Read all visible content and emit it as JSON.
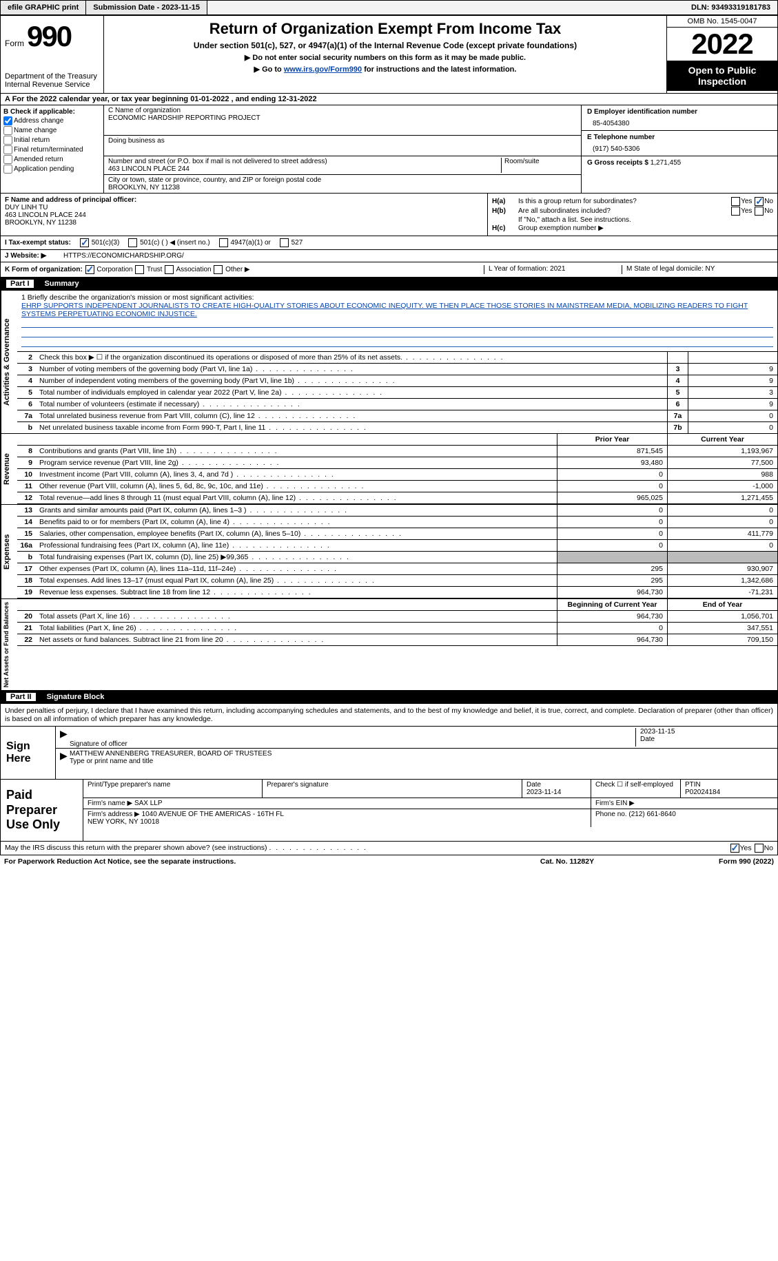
{
  "topbar": {
    "efile": "efile GRAPHIC print",
    "subdate_lbl": "Submission Date - ",
    "subdate": "2023-11-15",
    "dln_lbl": "DLN: ",
    "dln": "93493319181783"
  },
  "header": {
    "form_word": "Form",
    "form_num": "990",
    "dept": "Department of the Treasury\nInternal Revenue Service",
    "title": "Return of Organization Exempt From Income Tax",
    "subtitle": "Under section 501(c), 527, or 4947(a)(1) of the Internal Revenue Code (except private foundations)",
    "arrow1": "▶ Do not enter social security numbers on this form as it may be made public.",
    "arrow2_pre": "▶ Go to ",
    "arrow2_link": "www.irs.gov/Form990",
    "arrow2_post": " for instructions and the latest information.",
    "omb": "OMB No. 1545-0047",
    "year": "2022",
    "open_pub": "Open to Public Inspection"
  },
  "row_a": "A  For the 2022 calendar year, or tax year beginning 01-01-2022    , and ending 12-31-2022",
  "col_b": {
    "hdr": "B Check if applicable:",
    "opts": [
      "Address change",
      "Name change",
      "Initial return",
      "Final return/terminated",
      "Amended return",
      "Application pending"
    ],
    "checked": [
      true,
      false,
      false,
      false,
      false,
      false
    ]
  },
  "col_c": {
    "name_lbl": "C Name of organization",
    "name": "ECONOMIC HARDSHIP REPORTING PROJECT",
    "dba_lbl": "Doing business as",
    "dba": "",
    "street_lbl": "Number and street (or P.O. box if mail is not delivered to street address)",
    "street": "463 LINCOLN PLACE 244",
    "room_lbl": "Room/suite",
    "city_lbl": "City or town, state or province, country, and ZIP or foreign postal code",
    "city": "BROOKLYN, NY  11238"
  },
  "col_de": {
    "d_lbl": "D Employer identification number",
    "d_val": "85-4054380",
    "e_lbl": "E Telephone number",
    "e_val": "(917) 540-5306",
    "g_lbl": "G Gross receipts $ ",
    "g_val": "1,271,455"
  },
  "col_f": {
    "lbl": "F  Name and address of principal officer:",
    "name": "DUY LINH TU",
    "addr1": "463 LINCOLN PLACE 244",
    "addr2": "BROOKLYN, NY  11238"
  },
  "col_h": {
    "ha": "Is this a group return for subordinates?",
    "hb": "Are all subordinates included?",
    "hb2": "If \"No,\" attach a list. See instructions.",
    "hc": "Group exemption number ▶"
  },
  "row_i": {
    "lbl": "I   Tax-exempt status:",
    "o1": "501(c)(3)",
    "o2": "501(c) (  ) ◀ (insert no.)",
    "o3": "4947(a)(1) or",
    "o4": "527"
  },
  "row_j": {
    "lbl": "J   Website: ▶",
    "val": "HTTPS://ECONOMICHARDSHIP.ORG/"
  },
  "row_k": {
    "left": "K Form of organization:",
    "opts": [
      "Corporation",
      "Trust",
      "Association",
      "Other ▶"
    ],
    "l": "L Year of formation: 2021",
    "m": "M State of legal domicile: NY"
  },
  "part1_hdr": {
    "num": "Part I",
    "title": "Summary"
  },
  "mission": {
    "lbl": "1   Briefly describe the organization's mission or most significant activities:",
    "txt": "EHRP SUPPORTS INDEPENDENT JOURNALISTS TO CREATE HIGH-QUALITY STORIES ABOUT ECONOMIC INEQUITY. WE THEN PLACE THOSE STORIES IN MAINSTREAM MEDIA, MOBILIZING READERS TO FIGHT SYSTEMS PERPETUATING ECONOMIC INJUSTICE."
  },
  "gov_rows": [
    {
      "n": "2",
      "t": "Check this box ▶ ☐  if the organization discontinued its operations or disposed of more than 25% of its net assets.",
      "box": "",
      "v": ""
    },
    {
      "n": "3",
      "t": "Number of voting members of the governing body (Part VI, line 1a)",
      "box": "3",
      "v": "9"
    },
    {
      "n": "4",
      "t": "Number of independent voting members of the governing body (Part VI, line 1b)",
      "box": "4",
      "v": "9"
    },
    {
      "n": "5",
      "t": "Total number of individuals employed in calendar year 2022 (Part V, line 2a)",
      "box": "5",
      "v": "3"
    },
    {
      "n": "6",
      "t": "Total number of volunteers (estimate if necessary)",
      "box": "6",
      "v": "9"
    },
    {
      "n": "7a",
      "t": "Total unrelated business revenue from Part VIII, column (C), line 12",
      "box": "7a",
      "v": "0"
    },
    {
      "n": "b",
      "t": "Net unrelated business taxable income from Form 990-T, Part I, line 11",
      "box": "7b",
      "v": "0"
    }
  ],
  "rev_hdr": {
    "c1": "Prior Year",
    "c2": "Current Year"
  },
  "rev_rows": [
    {
      "n": "8",
      "t": "Contributions and grants (Part VIII, line 1h)",
      "c1": "871,545",
      "c2": "1,193,967"
    },
    {
      "n": "9",
      "t": "Program service revenue (Part VIII, line 2g)",
      "c1": "93,480",
      "c2": "77,500"
    },
    {
      "n": "10",
      "t": "Investment income (Part VIII, column (A), lines 3, 4, and 7d )",
      "c1": "0",
      "c2": "988"
    },
    {
      "n": "11",
      "t": "Other revenue (Part VIII, column (A), lines 5, 6d, 8c, 9c, 10c, and 11e)",
      "c1": "0",
      "c2": "-1,000"
    },
    {
      "n": "12",
      "t": "Total revenue—add lines 8 through 11 (must equal Part VIII, column (A), line 12)",
      "c1": "965,025",
      "c2": "1,271,455"
    }
  ],
  "exp_rows": [
    {
      "n": "13",
      "t": "Grants and similar amounts paid (Part IX, column (A), lines 1–3 )",
      "c1": "0",
      "c2": "0"
    },
    {
      "n": "14",
      "t": "Benefits paid to or for members (Part IX, column (A), line 4)",
      "c1": "0",
      "c2": "0"
    },
    {
      "n": "15",
      "t": "Salaries, other compensation, employee benefits (Part IX, column (A), lines 5–10)",
      "c1": "0",
      "c2": "411,779"
    },
    {
      "n": "16a",
      "t": "Professional fundraising fees (Part IX, column (A), line 11e)",
      "c1": "0",
      "c2": "0"
    },
    {
      "n": "b",
      "t": "Total fundraising expenses (Part IX, column (D), line 25) ▶99,365",
      "c1": "grey",
      "c2": "grey"
    },
    {
      "n": "17",
      "t": "Other expenses (Part IX, column (A), lines 11a–11d, 11f–24e)",
      "c1": "295",
      "c2": "930,907"
    },
    {
      "n": "18",
      "t": "Total expenses. Add lines 13–17 (must equal Part IX, column (A), line 25)",
      "c1": "295",
      "c2": "1,342,686"
    },
    {
      "n": "19",
      "t": "Revenue less expenses. Subtract line 18 from line 12",
      "c1": "964,730",
      "c2": "-71,231"
    }
  ],
  "net_hdr": {
    "c1": "Beginning of Current Year",
    "c2": "End of Year"
  },
  "net_rows": [
    {
      "n": "20",
      "t": "Total assets (Part X, line 16)",
      "c1": "964,730",
      "c2": "1,056,701"
    },
    {
      "n": "21",
      "t": "Total liabilities (Part X, line 26)",
      "c1": "0",
      "c2": "347,551"
    },
    {
      "n": "22",
      "t": "Net assets or fund balances. Subtract line 21 from line 20",
      "c1": "964,730",
      "c2": "709,150"
    }
  ],
  "part2_hdr": {
    "num": "Part II",
    "title": "Signature Block"
  },
  "sig_intro": "Under penalties of perjury, I declare that I have examined this return, including accompanying schedules and statements, and to the best of my knowledge and belief, it is true, correct, and complete. Declaration of preparer (other than officer) is based on all information of which preparer has any knowledge.",
  "sign": {
    "lbl": "Sign Here",
    "sig_of": "Signature of officer",
    "date": "2023-11-15",
    "date_lbl": "Date",
    "name": "MATTHEW ANNENBERG  TREASURER, BOARD OF TRUSTEES",
    "name_lbl": "Type or print name and title"
  },
  "prep": {
    "lbl": "Paid Preparer Use Only",
    "h1": "Print/Type preparer's name",
    "h2": "Preparer's signature",
    "h3_lbl": "Date",
    "h3": "2023-11-14",
    "h4": "Check ☐ if self-employed",
    "h5_lbl": "PTIN",
    "h5": "P02024184",
    "firm_name_lbl": "Firm's name    ▶ ",
    "firm_name": "SAX LLP",
    "firm_ein_lbl": "Firm's EIN ▶",
    "firm_addr_lbl": "Firm's address ▶ ",
    "firm_addr": "1040 AVENUE OF THE AMERICAS - 16TH FL\nNEW YORK, NY  10018",
    "phone_lbl": "Phone no. ",
    "phone": "(212) 661-8640"
  },
  "footer_q": "May the IRS discuss this return with the preparer shown above? (see instructions)",
  "final": {
    "f1": "For Paperwork Reduction Act Notice, see the separate instructions.",
    "f2": "Cat. No. 11282Y",
    "f3": "Form 990 (2022)"
  },
  "vtabs": {
    "gov": "Activities & Governance",
    "rev": "Revenue",
    "exp": "Expenses",
    "net": "Net Assets or Fund Balances"
  }
}
